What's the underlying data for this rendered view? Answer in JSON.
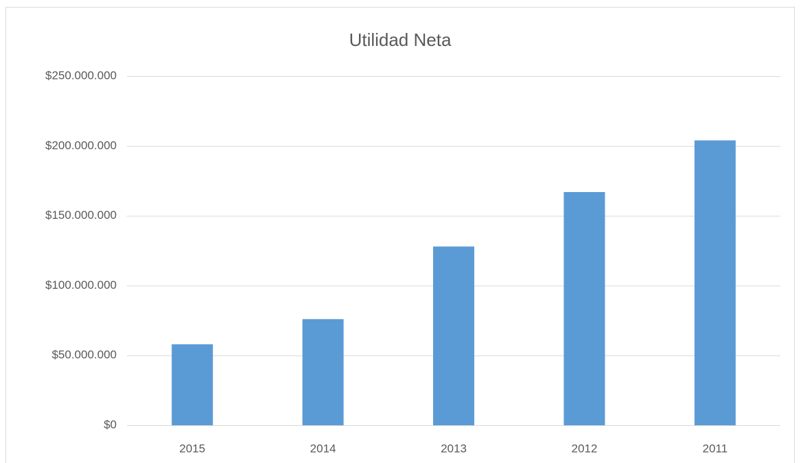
{
  "chart_data": {
    "type": "bar",
    "title": "Utilidad Neta",
    "categories": [
      "2015",
      "2014",
      "2013",
      "2012",
      "2011"
    ],
    "values": [
      58000000,
      76000000,
      128000000,
      167000000,
      204000000
    ],
    "color": "#5b9bd5",
    "ylim": [
      0,
      250000000
    ],
    "yticks": [
      {
        "value": 0,
        "label": "$0"
      },
      {
        "value": 50000000,
        "label": "$50.000.000"
      },
      {
        "value": 100000000,
        "label": "$100.000.000"
      },
      {
        "value": 150000000,
        "label": "$150.000.000"
      },
      {
        "value": 200000000,
        "label": "$200.000.000"
      },
      {
        "value": 250000000,
        "label": "$250.000.000"
      }
    ],
    "grid": true
  }
}
